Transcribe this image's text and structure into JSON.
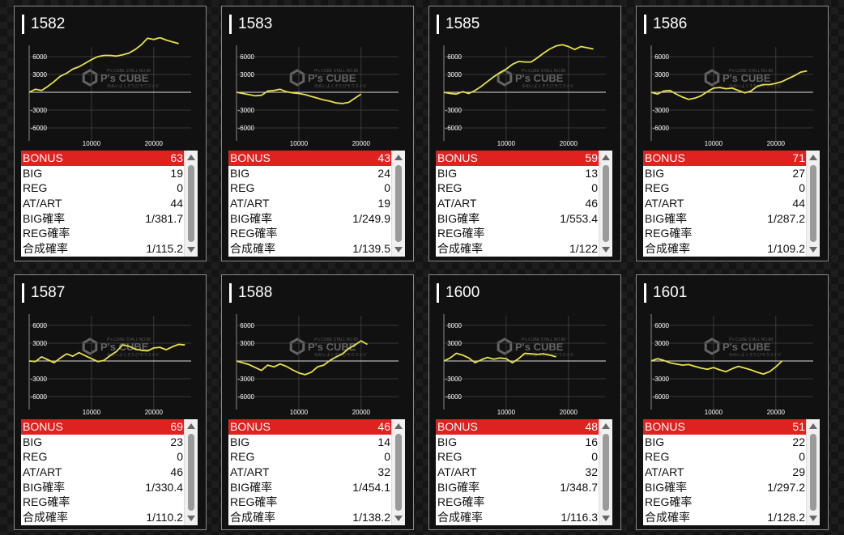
{
  "labels": {
    "bonus": "BONUS",
    "big": "BIG",
    "reg": "REG",
    "atart": "AT/ART",
    "big_rate": "BIG確率",
    "reg_rate": "REG確率",
    "combined_rate": "合成確率"
  },
  "watermark": {
    "brand": "P's CUBE",
    "line1": "P's CUBE STALL NO.88",
    "line2": "ゆめいよくそたびモウスナビ"
  },
  "colors": {
    "bonus_bg": "#dd2220",
    "line": "#e8e14a"
  },
  "machines": [
    {
      "id": "1582",
      "stats": {
        "bonus": "63",
        "big": "19",
        "reg": "0",
        "atart": "44",
        "big_rate": "1/381.7",
        "reg_rate": "",
        "combined_rate": "1/115.2"
      }
    },
    {
      "id": "1583",
      "stats": {
        "bonus": "43",
        "big": "24",
        "reg": "0",
        "atart": "19",
        "big_rate": "1/249.9",
        "reg_rate": "",
        "combined_rate": "1/139.5"
      }
    },
    {
      "id": "1585",
      "stats": {
        "bonus": "59",
        "big": "13",
        "reg": "0",
        "atart": "46",
        "big_rate": "1/553.4",
        "reg_rate": "",
        "combined_rate": "1/122"
      }
    },
    {
      "id": "1586",
      "stats": {
        "bonus": "71",
        "big": "27",
        "reg": "0",
        "atart": "44",
        "big_rate": "1/287.2",
        "reg_rate": "",
        "combined_rate": "1/109.2"
      }
    },
    {
      "id": "1587",
      "stats": {
        "bonus": "69",
        "big": "23",
        "reg": "0",
        "atart": "46",
        "big_rate": "1/330.4",
        "reg_rate": "",
        "combined_rate": "1/110.2"
      }
    },
    {
      "id": "1588",
      "stats": {
        "bonus": "46",
        "big": "14",
        "reg": "0",
        "atart": "32",
        "big_rate": "1/454.1",
        "reg_rate": "",
        "combined_rate": "1/138.2"
      }
    },
    {
      "id": "1600",
      "stats": {
        "bonus": "48",
        "big": "16",
        "reg": "0",
        "atart": "32",
        "big_rate": "1/348.7",
        "reg_rate": "",
        "combined_rate": "1/116.3"
      }
    },
    {
      "id": "1601",
      "stats": {
        "bonus": "51",
        "big": "22",
        "reg": "0",
        "atart": "29",
        "big_rate": "1/297.2",
        "reg_rate": "",
        "combined_rate": "1/128.2"
      }
    }
  ],
  "chart_data": [
    {
      "type": "line",
      "title": "1582",
      "xticks": [
        10000,
        20000
      ],
      "yticks": [
        6000,
        3000,
        -3000,
        -6000
      ],
      "ylim": [
        -9000,
        9000
      ],
      "xlim": [
        0,
        26000
      ],
      "series": [
        {
          "x": [
            0,
            1000,
            2000,
            3000,
            4000,
            5000,
            6000,
            7000,
            8000,
            9000,
            10000,
            11000,
            12000,
            13000,
            14000,
            15000,
            16000,
            17000,
            18000,
            19000,
            20000,
            21000,
            22000,
            23000,
            24000
          ],
          "y": [
            0,
            500,
            300,
            1000,
            1800,
            2700,
            3200,
            3900,
            4300,
            4900,
            5500,
            6000,
            6200,
            6200,
            6100,
            6300,
            6600,
            7200,
            8000,
            9100,
            8900,
            9200,
            8800,
            8500,
            8200
          ]
        }
      ]
    },
    {
      "type": "line",
      "title": "1583",
      "xticks": [
        10000,
        20000
      ],
      "yticks": [
        6000,
        3000,
        -3000,
        -6000
      ],
      "ylim": [
        -9000,
        9000
      ],
      "xlim": [
        0,
        26000
      ],
      "series": [
        {
          "x": [
            0,
            1000,
            2000,
            3000,
            4000,
            5000,
            6000,
            7000,
            8000,
            9000,
            10000,
            11000,
            12000,
            13000,
            14000,
            15000,
            16000,
            17000,
            18000,
            19000,
            20000
          ],
          "y": [
            0,
            -200,
            -400,
            -600,
            -500,
            200,
            300,
            500,
            100,
            -100,
            -200,
            -400,
            -700,
            -1000,
            -1300,
            -1500,
            -1800,
            -1900,
            -1700,
            -1000,
            -300
          ]
        }
      ]
    },
    {
      "type": "line",
      "title": "1585",
      "xticks": [
        10000,
        20000
      ],
      "yticks": [
        6000,
        3000,
        -3000,
        -6000
      ],
      "ylim": [
        -9000,
        9000
      ],
      "xlim": [
        0,
        26000
      ],
      "series": [
        {
          "x": [
            0,
            1000,
            2000,
            3000,
            4000,
            5000,
            6000,
            7000,
            8000,
            9000,
            10000,
            11000,
            12000,
            13000,
            14000,
            15000,
            16000,
            17000,
            18000,
            19000,
            20000,
            21000,
            22000,
            23000,
            24000
          ],
          "y": [
            0,
            -200,
            -300,
            100,
            -200,
            300,
            1000,
            1800,
            2600,
            3300,
            3900,
            4700,
            5200,
            5100,
            5100,
            5800,
            6600,
            7300,
            7800,
            8000,
            7700,
            7200,
            7700,
            7500,
            7300
          ]
        }
      ]
    },
    {
      "type": "line",
      "title": "1586",
      "xticks": [
        10000,
        20000
      ],
      "yticks": [
        6000,
        3000,
        -3000,
        -6000
      ],
      "ylim": [
        -9000,
        9000
      ],
      "xlim": [
        0,
        26000
      ],
      "series": [
        {
          "x": [
            0,
            1000,
            2000,
            3000,
            4000,
            5000,
            6000,
            7000,
            8000,
            9000,
            10000,
            11000,
            12000,
            13000,
            14000,
            15000,
            16000,
            17000,
            18000,
            19000,
            20000,
            21000,
            22000,
            23000,
            24000,
            25000
          ],
          "y": [
            0,
            -300,
            200,
            300,
            -300,
            -800,
            -1200,
            -1000,
            -600,
            100,
            700,
            800,
            600,
            700,
            300,
            -100,
            200,
            1000,
            1300,
            1300,
            1500,
            1800,
            2300,
            2800,
            3400,
            3600
          ]
        }
      ]
    },
    {
      "type": "line",
      "title": "1587",
      "xticks": [
        10000,
        20000
      ],
      "yticks": [
        6000,
        3000,
        -3000,
        -6000
      ],
      "ylim": [
        -9000,
        9000
      ],
      "xlim": [
        0,
        26000
      ],
      "series": [
        {
          "x": [
            0,
            1000,
            2000,
            3000,
            4000,
            5000,
            6000,
            7000,
            8000,
            9000,
            10000,
            11000,
            12000,
            13000,
            14000,
            15000,
            16000,
            17000,
            18000,
            19000,
            20000,
            21000,
            22000,
            23000,
            24000,
            25000
          ],
          "y": [
            0,
            -100,
            700,
            200,
            -300,
            500,
            1200,
            800,
            1400,
            900,
            400,
            -100,
            100,
            900,
            1600,
            2700,
            2500,
            2000,
            1800,
            1700,
            2200,
            2300,
            1900,
            2400,
            2800,
            2700
          ]
        }
      ]
    },
    {
      "type": "line",
      "title": "1588",
      "xticks": [
        10000,
        20000
      ],
      "yticks": [
        6000,
        3000,
        -3000,
        -6000
      ],
      "ylim": [
        -9000,
        9000
      ],
      "xlim": [
        0,
        26000
      ],
      "series": [
        {
          "x": [
            0,
            1000,
            2000,
            3000,
            4000,
            5000,
            6000,
            7000,
            8000,
            9000,
            10000,
            11000,
            12000,
            13000,
            14000,
            15000,
            16000,
            17000,
            18000,
            19000,
            20000,
            21000
          ],
          "y": [
            0,
            -300,
            -600,
            -1100,
            -1600,
            -700,
            -1000,
            -500,
            -900,
            -1500,
            -2000,
            -2300,
            -1900,
            -1000,
            -700,
            100,
            700,
            1200,
            2100,
            2700,
            3400,
            2800
          ]
        }
      ]
    },
    {
      "type": "line",
      "title": "1600",
      "xticks": [
        10000,
        20000
      ],
      "yticks": [
        6000,
        3000,
        -3000,
        -6000
      ],
      "ylim": [
        -9000,
        9000
      ],
      "xlim": [
        0,
        26000
      ],
      "series": [
        {
          "x": [
            0,
            1000,
            2000,
            3000,
            4000,
            5000,
            6000,
            7000,
            8000,
            9000,
            10000,
            11000,
            12000,
            13000,
            14000,
            15000,
            16000,
            17000,
            18000
          ],
          "y": [
            0,
            500,
            1300,
            1000,
            500,
            -300,
            200,
            600,
            300,
            500,
            400,
            -300,
            400,
            1300,
            1200,
            1100,
            1200,
            1000,
            700
          ]
        }
      ]
    },
    {
      "type": "line",
      "title": "1601",
      "xticks": [
        10000,
        20000
      ],
      "yticks": [
        6000,
        3000,
        -3000,
        -6000
      ],
      "ylim": [
        -9000,
        9000
      ],
      "xlim": [
        0,
        26000
      ],
      "series": [
        {
          "x": [
            0,
            1000,
            2000,
            3000,
            4000,
            5000,
            6000,
            7000,
            8000,
            9000,
            10000,
            11000,
            12000,
            13000,
            14000,
            15000,
            16000,
            17000,
            18000,
            19000,
            20000,
            21000
          ],
          "y": [
            0,
            400,
            100,
            -300,
            -500,
            -700,
            -600,
            -900,
            -1200,
            -1400,
            -1100,
            -1500,
            -1800,
            -1300,
            -900,
            -1200,
            -1500,
            -1900,
            -2200,
            -1800,
            -1000,
            0
          ]
        }
      ]
    }
  ]
}
